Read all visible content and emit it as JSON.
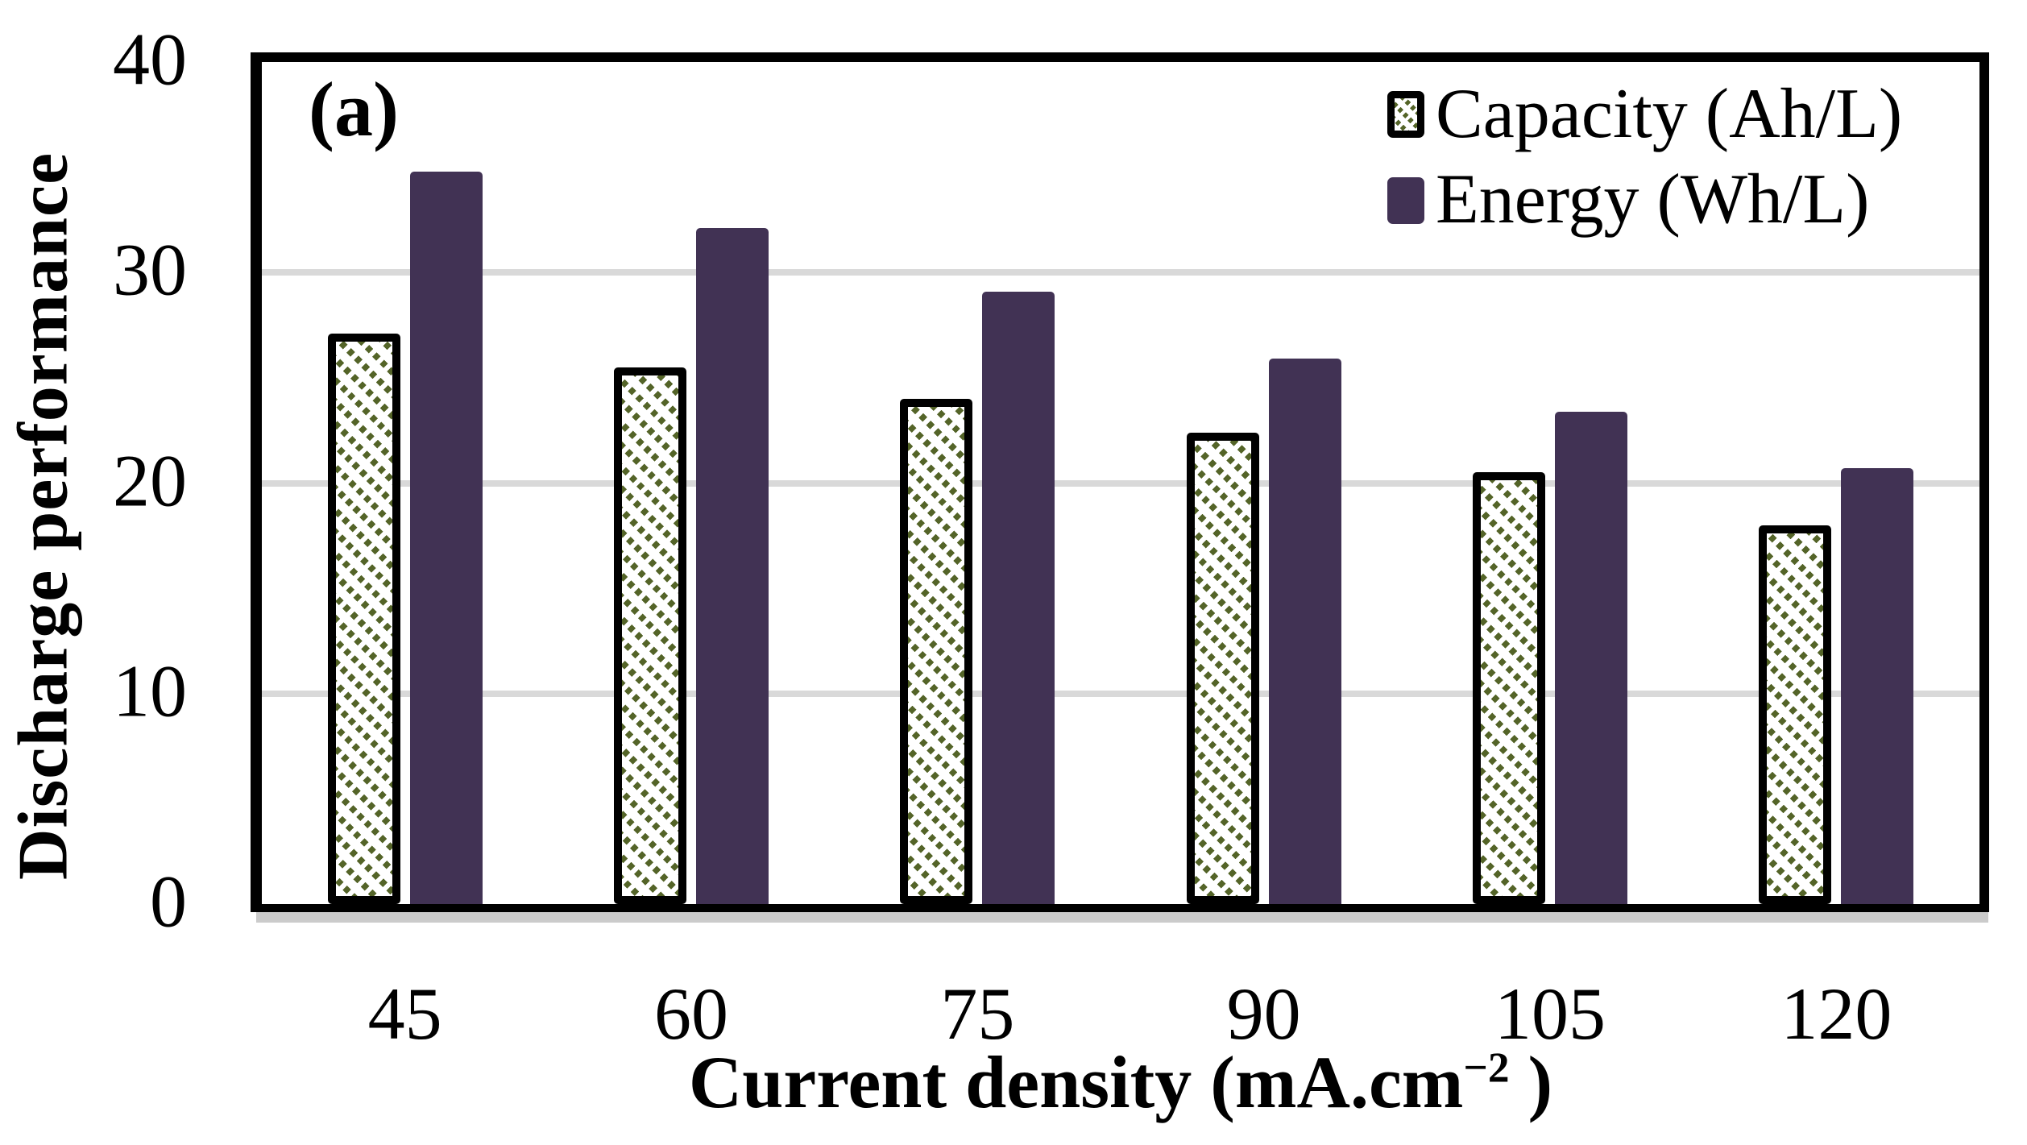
{
  "panel_label": "(a)",
  "y_axis": {
    "title": "Discharge performance",
    "ticks": [
      0,
      10,
      20,
      30,
      40
    ]
  },
  "x_axis": {
    "title_main": "Current density (mA.cm",
    "title_sup": "−2",
    "title_tail": " )"
  },
  "legend": {
    "items": [
      {
        "label": "Capacity (Ah/L)",
        "swatch": "hatched-olive"
      },
      {
        "label": "Energy (Wh/L)",
        "swatch": "solid-purple"
      }
    ]
  },
  "colors": {
    "energy_bar": "#413254",
    "capacity_hatch": "#546428",
    "gridline": "#d9d9d9",
    "axis_shadow": "#cbcbcb",
    "frame": "#000000"
  },
  "chart_data": {
    "type": "bar",
    "categories": [
      "45",
      "60",
      "75",
      "90",
      "105",
      "120"
    ],
    "series": [
      {
        "name": "Capacity (Ah/L)",
        "values": [
          27.1,
          25.5,
          24.0,
          22.4,
          20.5,
          18.0
        ]
      },
      {
        "name": "Energy (Wh/L)",
        "values": [
          34.8,
          32.1,
          29.1,
          25.9,
          23.4,
          20.7
        ]
      }
    ],
    "title": "",
    "xlabel": "Current density (mA.cm−2 )",
    "ylabel": "Discharge performance",
    "ylim": [
      0,
      40
    ],
    "gridline_ticks": [
      10,
      20,
      30
    ],
    "grid": true,
    "legend_position": "top-right"
  }
}
